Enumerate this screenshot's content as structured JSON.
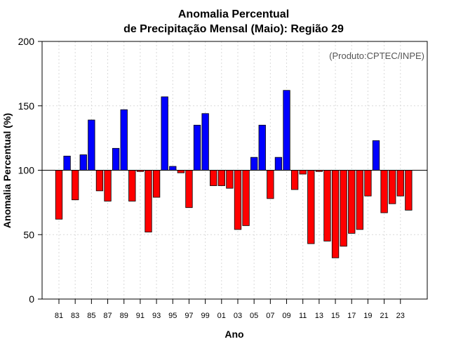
{
  "chart_data": {
    "type": "bar",
    "title_line1": "Anomalia Percentual",
    "title_line2": "de Precipitação Mensal (Maio): Região 29",
    "xlabel": "Ano",
    "ylabel": "Anomalia Percentual (%)",
    "credit": "(Produto:CPTEC/INPE)",
    "ylim": [
      0,
      200
    ],
    "yticks": [
      0,
      50,
      100,
      150,
      200
    ],
    "ytick_labels": [
      "0",
      "50",
      "100",
      "150",
      "200"
    ],
    "baseline": 100,
    "grid": true,
    "colors": {
      "above": "#0000ff",
      "below": "#ff0000",
      "border": "#000000",
      "grid": "#d9d9d9"
    },
    "categories": [
      "81",
      "82",
      "83",
      "84",
      "85",
      "86",
      "87",
      "88",
      "89",
      "90",
      "91",
      "92",
      "93",
      "94",
      "95",
      "96",
      "97",
      "98",
      "99",
      "00",
      "01",
      "02",
      "03",
      "04",
      "05",
      "06",
      "07",
      "08",
      "09",
      "10",
      "11",
      "12",
      "13",
      "14",
      "15",
      "16",
      "17",
      "18",
      "19",
      "20",
      "21",
      "22",
      "23",
      "24"
    ],
    "x_tick_labels": [
      "81",
      "83",
      "85",
      "87",
      "89",
      "91",
      "93",
      "95",
      "97",
      "99",
      "01",
      "03",
      "05",
      "07",
      "09",
      "11",
      "13",
      "15",
      "17",
      "19",
      "21",
      "23"
    ],
    "values": [
      62,
      111,
      77,
      112,
      139,
      84,
      76,
      117,
      147,
      76,
      99,
      52,
      79,
      157,
      103,
      98,
      71,
      135,
      144,
      88,
      88,
      86,
      54,
      57,
      110,
      135,
      78,
      110,
      162,
      85,
      97,
      43,
      99,
      45,
      32,
      41,
      51,
      54,
      80,
      123,
      67,
      74,
      80,
      69
    ]
  }
}
